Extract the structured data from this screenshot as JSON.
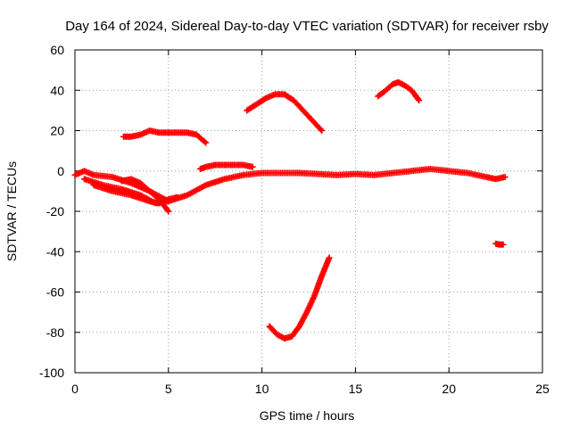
{
  "chart_data": {
    "type": "scatter",
    "title": "Day 164 of 2024, Sidereal Day-to-day VTEC variation (SDTVAR) for receiver rsby",
    "xlabel": "GPS time / hours",
    "ylabel": "SDTVAR / TECUs",
    "xlim": [
      0,
      25
    ],
    "ylim": [
      -100,
      60
    ],
    "xticks": [
      0,
      5,
      10,
      15,
      20,
      25
    ],
    "yticks": [
      -100,
      -80,
      -60,
      -40,
      -20,
      0,
      20,
      40,
      60
    ],
    "grid": true,
    "marker": "plus",
    "color": "#ff0000",
    "series": [
      {
        "name": "arc-main-baseline",
        "x": [
          0,
          0.5,
          1,
          2,
          3,
          4,
          5,
          6,
          7,
          8,
          9,
          10,
          11,
          12,
          13,
          14,
          15,
          16,
          17,
          18,
          19,
          20,
          21,
          22,
          22.5,
          23
        ],
        "y": [
          -2,
          0,
          -2,
          -3,
          -6,
          -10,
          -15,
          -12,
          -7,
          -4,
          -2,
          -1,
          -1,
          -1,
          -1.5,
          -2,
          -1.5,
          -2,
          -1,
          0,
          1,
          0,
          -1,
          -3,
          -4,
          -3
        ]
      },
      {
        "name": "arc-low-1",
        "x": [
          0.5,
          1.5,
          2.5,
          3.5,
          4.3,
          5
        ],
        "y": [
          -4,
          -7,
          -9,
          -12,
          -16,
          -15
        ]
      },
      {
        "name": "arc-low-2",
        "x": [
          1,
          2,
          3,
          4,
          4.5,
          5,
          5.5
        ],
        "y": [
          -7,
          -10,
          -12,
          -15,
          -16,
          -14,
          -13
        ]
      },
      {
        "name": "arc-low-3",
        "x": [
          2.5,
          3,
          3.5,
          4,
          4.5,
          5
        ],
        "y": [
          -5,
          -4,
          -6,
          -10,
          -14,
          -20
        ]
      },
      {
        "name": "arc-upper-20",
        "x": [
          2.6,
          3,
          3.5,
          4,
          4.5,
          5,
          5.5,
          6,
          6.5,
          7
        ],
        "y": [
          17,
          17,
          18,
          20,
          19,
          19,
          19,
          19,
          18,
          14
        ]
      },
      {
        "name": "arc-upper-3",
        "x": [
          6.7,
          7,
          7.5,
          8,
          8.5,
          9,
          9.5
        ],
        "y": [
          1,
          2,
          3,
          3,
          3,
          3,
          2
        ]
      },
      {
        "name": "arc-mid-40",
        "x": [
          9.2,
          9.7,
          10.2,
          10.7,
          11.2,
          11.7,
          12.2,
          12.7,
          13.2
        ],
        "y": [
          30,
          33,
          36,
          38,
          38,
          35,
          30,
          25,
          20
        ]
      },
      {
        "name": "arc-late-40",
        "x": [
          16.2,
          16.5,
          17,
          17.3,
          17.7,
          18,
          18.4
        ],
        "y": [
          37,
          39,
          43,
          44,
          42,
          40,
          35
        ]
      },
      {
        "name": "arc-deep-neg",
        "x": [
          10.4,
          10.8,
          11.2,
          11.6,
          12,
          12.4,
          12.8,
          13.2,
          13.6
        ],
        "y": [
          -77,
          -81,
          -83,
          -82,
          -77,
          -70,
          -62,
          -52,
          -43
        ]
      },
      {
        "name": "arc-late-neg",
        "x": [
          22.5,
          22.7,
          22.9
        ],
        "y": [
          -36,
          -36.5,
          -36.5
        ]
      }
    ]
  }
}
